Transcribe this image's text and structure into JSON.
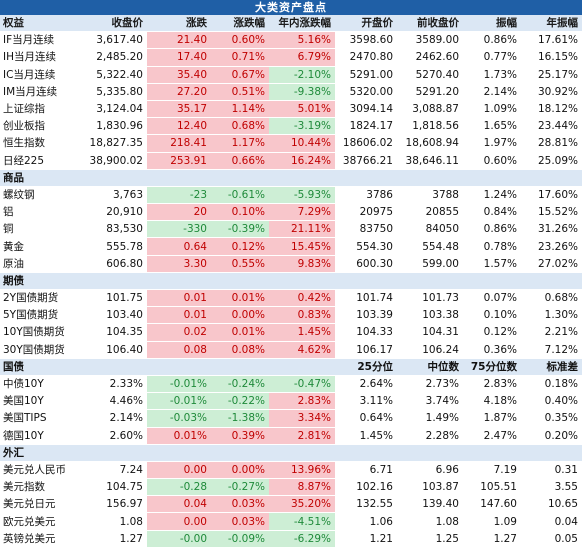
{
  "title": "大类资产盘点",
  "sections": [
    {
      "header": [
        "权益",
        "收盘价",
        "涨跌",
        "涨跌幅",
        "年内涨跌幅",
        "开盘价",
        "前收盘价",
        "振幅",
        "年振幅"
      ],
      "rows": [
        [
          "IF当月连续",
          "3,617.40",
          "21.40",
          "0.60%",
          "5.16%",
          "3598.60",
          "3589.00",
          "0.86%",
          "17.61%"
        ],
        [
          "IH当月连续",
          "2,485.20",
          "17.40",
          "0.71%",
          "6.79%",
          "2470.80",
          "2462.60",
          "0.77%",
          "16.15%"
        ],
        [
          "IC当月连续",
          "5,322.40",
          "35.40",
          "0.67%",
          "-2.10%",
          "5291.00",
          "5270.40",
          "1.73%",
          "25.17%"
        ],
        [
          "IM当月连续",
          "5,335.80",
          "27.20",
          "0.51%",
          "-9.38%",
          "5320.00",
          "5291.20",
          "2.14%",
          "30.92%"
        ],
        [
          "上证综指",
          "3,124.04",
          "35.17",
          "1.14%",
          "5.01%",
          "3094.14",
          "3,088.87",
          "1.09%",
          "18.12%"
        ],
        [
          "创业板指",
          "1,830.96",
          "12.40",
          "0.68%",
          "-3.19%",
          "1824.17",
          "1,818.56",
          "1.65%",
          "23.44%"
        ],
        [
          "恒生指数",
          "18,827.35",
          "218.41",
          "1.17%",
          "10.44%",
          "18606.02",
          "18,608.94",
          "1.97%",
          "28.81%"
        ],
        [
          "日经225",
          "38,900.02",
          "253.91",
          "0.66%",
          "16.24%",
          "38766.21",
          "38,646.11",
          "0.60%",
          "25.09%"
        ]
      ]
    },
    {
      "header": [
        "商品",
        "",
        "",
        "",
        "",
        "",
        "",
        "",
        ""
      ],
      "rows": [
        [
          "螺纹钢",
          "3,763",
          "-23",
          "-0.61%",
          "-5.93%",
          "3786",
          "3788",
          "1.24%",
          "17.60%"
        ],
        [
          "铝",
          "20,910",
          "20",
          "0.10%",
          "7.29%",
          "20975",
          "20855",
          "0.84%",
          "15.52%"
        ],
        [
          "铜",
          "83,530",
          "-330",
          "-0.39%",
          "21.11%",
          "83750",
          "84050",
          "0.86%",
          "31.26%"
        ],
        [
          "黄金",
          "555.78",
          "0.64",
          "0.12%",
          "15.45%",
          "554.30",
          "554.48",
          "0.78%",
          "23.26%"
        ],
        [
          "原油",
          "606.80",
          "3.30",
          "0.55%",
          "9.83%",
          "600.30",
          "599.00",
          "1.57%",
          "27.02%"
        ]
      ]
    },
    {
      "header": [
        "期债",
        "",
        "",
        "",
        "",
        "",
        "",
        "",
        ""
      ],
      "rows": [
        [
          "2Y国债期货",
          "101.75",
          "0.01",
          "0.01%",
          "0.42%",
          "101.74",
          "101.73",
          "0.07%",
          "0.68%"
        ],
        [
          "5Y国债期货",
          "103.40",
          "0.01",
          "0.00%",
          "0.83%",
          "103.39",
          "103.38",
          "0.10%",
          "1.30%"
        ],
        [
          "10Y国债期货",
          "104.35",
          "0.02",
          "0.01%",
          "1.45%",
          "104.33",
          "104.31",
          "0.12%",
          "2.21%"
        ],
        [
          "30Y国债期货",
          "106.40",
          "0.08",
          "0.08%",
          "4.62%",
          "106.17",
          "106.24",
          "0.36%",
          "7.12%"
        ]
      ]
    },
    {
      "header": [
        "国债",
        "",
        "",
        "",
        "",
        "25分位",
        "中位数",
        "75分位数",
        "标准差"
      ],
      "rows": [
        [
          "中债10Y",
          "2.33%",
          "-0.01%",
          "-0.24%",
          "-0.47%",
          "2.64%",
          "2.73%",
          "2.83%",
          "0.18%"
        ],
        [
          "美国10Y",
          "4.46%",
          "-0.01%",
          "-0.22%",
          "2.83%",
          "3.11%",
          "3.74%",
          "4.18%",
          "0.40%"
        ],
        [
          "美国TIPS",
          "2.14%",
          "-0.03%",
          "-1.38%",
          "3.34%",
          "0.64%",
          "1.49%",
          "1.87%",
          "0.35%"
        ],
        [
          "德国10Y",
          "2.60%",
          "0.01%",
          "0.39%",
          "2.81%",
          "1.45%",
          "2.28%",
          "2.47%",
          "0.20%"
        ]
      ]
    },
    {
      "header": [
        "外汇",
        "",
        "",
        "",
        "",
        "",
        "",
        "",
        ""
      ],
      "rows": [
        [
          "美元兑人民币",
          "7.24",
          "0.00",
          "0.00%",
          "13.96%",
          "6.71",
          "6.96",
          "7.19",
          "0.31"
        ],
        [
          "美元指数",
          "104.75",
          "-0.28",
          "-0.27%",
          "8.87%",
          "102.16",
          "103.87",
          "105.51",
          "3.55"
        ],
        [
          "美元兑日元",
          "156.97",
          "0.04",
          "0.03%",
          "35.20%",
          "132.55",
          "139.40",
          "147.60",
          "10.65"
        ],
        [
          "欧元兑美元",
          "1.08",
          "0.00",
          "0.03%",
          "-4.51%",
          "1.06",
          "1.08",
          "1.09",
          "0.04"
        ],
        [
          "英镑兑美元",
          "1.27",
          "-0.00",
          "-0.09%",
          "-6.29%",
          "1.21",
          "1.25",
          "1.27",
          "0.05"
        ]
      ]
    }
  ]
}
